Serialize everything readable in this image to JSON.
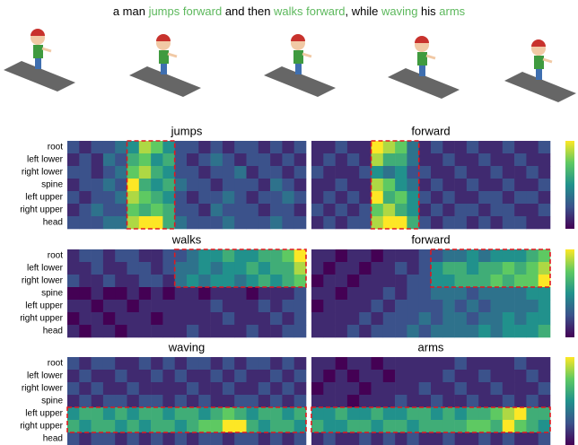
{
  "caption": [
    {
      "text": "a man ",
      "color": "#000000"
    },
    {
      "text": "jumps forward",
      "color": "#5cb85c"
    },
    {
      "text": " and then ",
      "color": "#000000"
    },
    {
      "text": "walks forward",
      "color": "#5cb85c"
    },
    {
      "text": ", while ",
      "color": "#000000"
    },
    {
      "text": "waving",
      "color": "#5cb85c"
    },
    {
      "text": " his ",
      "color": "#000000"
    },
    {
      "text": "arms",
      "color": "#5cb85c"
    }
  ],
  "chart_data": [
    {
      "type": "heatmap",
      "title": "jumps",
      "rows": [
        "root",
        "left lower",
        "right lower",
        "spine",
        "left upper",
        "right upper",
        "head"
      ],
      "zlim": [
        1,
        9
      ],
      "highlight_rows": [
        0,
        6
      ],
      "highlight_cols": [
        5,
        8
      ],
      "values": [
        [
          3,
          2,
          3,
          3,
          4,
          5,
          8,
          7,
          5,
          3,
          3,
          2,
          3,
          2,
          3,
          3,
          2,
          3,
          2,
          3
        ],
        [
          2,
          3,
          2,
          4,
          3,
          6,
          7,
          5,
          6,
          3,
          2,
          3,
          4,
          3,
          2,
          3,
          3,
          2,
          3,
          2
        ],
        [
          3,
          3,
          2,
          3,
          4,
          7,
          8,
          6,
          5,
          3,
          3,
          2,
          3,
          3,
          4,
          2,
          3,
          3,
          2,
          3
        ],
        [
          2,
          3,
          3,
          4,
          3,
          9,
          6,
          5,
          6,
          4,
          3,
          3,
          2,
          3,
          3,
          3,
          2,
          4,
          3,
          2
        ],
        [
          3,
          2,
          3,
          3,
          4,
          8,
          7,
          6,
          5,
          3,
          2,
          3,
          3,
          4,
          3,
          2,
          3,
          3,
          4,
          3
        ],
        [
          2,
          3,
          4,
          3,
          3,
          7,
          6,
          7,
          6,
          3,
          3,
          2,
          4,
          3,
          3,
          3,
          2,
          3,
          3,
          2
        ],
        [
          3,
          3,
          3,
          4,
          4,
          8,
          9,
          9,
          6,
          4,
          3,
          3,
          3,
          4,
          3,
          3,
          3,
          4,
          3,
          3
        ]
      ]
    },
    {
      "type": "heatmap",
      "title": "forward",
      "zlim": [
        1,
        9
      ],
      "highlight_rows": [
        0,
        6
      ],
      "highlight_cols": [
        5,
        8
      ],
      "values": [
        [
          2,
          2,
          3,
          2,
          2,
          9,
          8,
          7,
          4,
          2,
          3,
          2,
          2,
          3,
          2,
          2,
          3,
          2,
          2,
          3
        ],
        [
          2,
          3,
          2,
          3,
          2,
          8,
          6,
          6,
          4,
          2,
          2,
          3,
          2,
          2,
          3,
          2,
          2,
          3,
          2,
          2
        ],
        [
          3,
          2,
          2,
          2,
          3,
          5,
          4,
          5,
          3,
          3,
          2,
          2,
          3,
          2,
          2,
          3,
          2,
          2,
          3,
          2
        ],
        [
          2,
          2,
          3,
          2,
          2,
          8,
          7,
          5,
          4,
          2,
          3,
          2,
          2,
          3,
          2,
          2,
          3,
          2,
          2,
          3
        ],
        [
          2,
          3,
          2,
          3,
          2,
          9,
          6,
          7,
          5,
          3,
          2,
          3,
          2,
          2,
          3,
          3,
          2,
          3,
          3,
          2
        ],
        [
          3,
          2,
          3,
          2,
          3,
          7,
          8,
          6,
          5,
          2,
          3,
          2,
          3,
          3,
          2,
          3,
          3,
          2,
          2,
          3
        ],
        [
          2,
          3,
          2,
          3,
          3,
          8,
          9,
          9,
          6,
          3,
          2,
          3,
          3,
          2,
          3,
          2,
          3,
          3,
          2,
          2
        ]
      ]
    },
    {
      "type": "heatmap",
      "title": "walks",
      "rows": [
        "root",
        "left lower",
        "right lower",
        "spine",
        "left upper",
        "right upper",
        "head"
      ],
      "zlim": [
        1,
        9
      ],
      "highlight_rows": [
        0,
        2
      ],
      "highlight_cols": [
        9,
        19
      ],
      "values": [
        [
          2,
          3,
          3,
          2,
          3,
          3,
          2,
          2,
          3,
          3,
          4,
          5,
          5,
          6,
          5,
          5,
          6,
          6,
          7,
          9
        ],
        [
          2,
          2,
          3,
          2,
          2,
          3,
          3,
          2,
          3,
          4,
          4,
          5,
          4,
          5,
          5,
          6,
          5,
          6,
          6,
          8
        ],
        [
          3,
          2,
          2,
          3,
          2,
          2,
          3,
          3,
          2,
          4,
          5,
          4,
          5,
          5,
          4,
          5,
          6,
          5,
          6,
          7
        ],
        [
          1,
          1,
          2,
          1,
          1,
          2,
          1,
          2,
          1,
          2,
          2,
          1,
          2,
          2,
          2,
          1,
          2,
          2,
          2,
          3
        ],
        [
          2,
          2,
          1,
          2,
          2,
          1,
          2,
          2,
          2,
          2,
          2,
          2,
          3,
          2,
          2,
          2,
          3,
          2,
          3,
          3
        ],
        [
          1,
          2,
          2,
          1,
          2,
          2,
          2,
          1,
          2,
          2,
          2,
          2,
          2,
          3,
          2,
          2,
          2,
          3,
          2,
          3
        ],
        [
          2,
          1,
          2,
          2,
          1,
          2,
          2,
          2,
          2,
          2,
          3,
          2,
          2,
          2,
          2,
          3,
          2,
          2,
          3,
          3
        ]
      ]
    },
    {
      "type": "heatmap",
      "title": "forward",
      "zlim": [
        1,
        9
      ],
      "highlight_rows": [
        0,
        2
      ],
      "highlight_cols": [
        10,
        19
      ],
      "values": [
        [
          2,
          2,
          1,
          2,
          2,
          1,
          2,
          2,
          2,
          3,
          3,
          4,
          4,
          5,
          4,
          5,
          5,
          5,
          6,
          7
        ],
        [
          2,
          1,
          2,
          2,
          1,
          2,
          2,
          3,
          2,
          3,
          5,
          6,
          6,
          5,
          6,
          6,
          7,
          6,
          7,
          8
        ],
        [
          1,
          2,
          2,
          1,
          2,
          2,
          2,
          2,
          3,
          3,
          5,
          5,
          6,
          6,
          6,
          7,
          6,
          7,
          7,
          9
        ],
        [
          2,
          2,
          1,
          2,
          2,
          2,
          3,
          2,
          3,
          3,
          4,
          4,
          4,
          3,
          4,
          4,
          4,
          4,
          5,
          5
        ],
        [
          1,
          2,
          2,
          2,
          2,
          3,
          2,
          3,
          3,
          3,
          3,
          4,
          3,
          4,
          3,
          4,
          4,
          4,
          4,
          5
        ],
        [
          2,
          2,
          2,
          2,
          3,
          2,
          3,
          3,
          3,
          4,
          3,
          4,
          4,
          3,
          4,
          4,
          5,
          4,
          5,
          5
        ],
        [
          2,
          2,
          2,
          3,
          2,
          3,
          3,
          3,
          4,
          3,
          4,
          4,
          4,
          4,
          5,
          4,
          5,
          5,
          5,
          6
        ]
      ]
    },
    {
      "type": "heatmap",
      "title": "waving",
      "rows": [
        "root",
        "left lower",
        "right lower",
        "spine",
        "left upper",
        "right upper",
        "head"
      ],
      "zlim": [
        1,
        9
      ],
      "highlight_rows": [
        4,
        5
      ],
      "highlight_cols": [
        0,
        19
      ],
      "values": [
        [
          3,
          2,
          3,
          3,
          2,
          2,
          3,
          2,
          3,
          2,
          3,
          3,
          2,
          3,
          2,
          3,
          3,
          2,
          3,
          2
        ],
        [
          2,
          3,
          2,
          2,
          3,
          2,
          2,
          3,
          2,
          3,
          2,
          2,
          3,
          2,
          3,
          2,
          2,
          3,
          2,
          3
        ],
        [
          3,
          2,
          3,
          2,
          2,
          3,
          2,
          2,
          2,
          2,
          3,
          2,
          2,
          3,
          2,
          2,
          3,
          2,
          3,
          2
        ],
        [
          2,
          3,
          2,
          3,
          3,
          2,
          3,
          3,
          2,
          3,
          2,
          3,
          2,
          2,
          3,
          3,
          2,
          3,
          2,
          3
        ],
        [
          5,
          6,
          6,
          5,
          6,
          5,
          6,
          6,
          5,
          6,
          6,
          5,
          6,
          7,
          6,
          5,
          6,
          6,
          5,
          6
        ],
        [
          6,
          5,
          6,
          6,
          5,
          6,
          5,
          6,
          6,
          5,
          6,
          7,
          7,
          9,
          9,
          6,
          5,
          6,
          6,
          5
        ],
        [
          3,
          2,
          3,
          3,
          2,
          3,
          2,
          3,
          2,
          3,
          2,
          3,
          3,
          2,
          3,
          3,
          2,
          3,
          2,
          3
        ]
      ]
    },
    {
      "type": "heatmap",
      "title": "arms",
      "zlim": [
        1,
        9
      ],
      "highlight_rows": [
        4,
        5
      ],
      "highlight_cols": [
        0,
        19
      ],
      "values": [
        [
          2,
          2,
          1,
          2,
          2,
          1,
          2,
          2,
          2,
          2,
          2,
          2,
          3,
          2,
          2,
          2,
          2,
          3,
          2,
          2
        ],
        [
          2,
          1,
          2,
          1,
          2,
          2,
          1,
          2,
          2,
          2,
          2,
          3,
          2,
          2,
          3,
          2,
          2,
          2,
          3,
          2
        ],
        [
          1,
          2,
          2,
          2,
          1,
          2,
          2,
          2,
          2,
          3,
          2,
          2,
          3,
          2,
          2,
          3,
          2,
          2,
          2,
          3
        ],
        [
          2,
          2,
          2,
          1,
          2,
          2,
          2,
          3,
          2,
          2,
          3,
          2,
          2,
          3,
          2,
          2,
          3,
          2,
          3,
          2
        ],
        [
          5,
          5,
          6,
          5,
          5,
          6,
          5,
          5,
          6,
          6,
          5,
          6,
          5,
          6,
          6,
          7,
          8,
          9,
          6,
          6
        ],
        [
          6,
          5,
          5,
          6,
          6,
          5,
          6,
          6,
          5,
          6,
          6,
          6,
          6,
          7,
          7,
          6,
          9,
          7,
          6,
          5
        ],
        [
          2,
          3,
          2,
          2,
          3,
          2,
          3,
          2,
          3,
          2,
          2,
          3,
          2,
          2,
          3,
          2,
          3,
          2,
          2,
          3
        ]
      ]
    }
  ]
}
